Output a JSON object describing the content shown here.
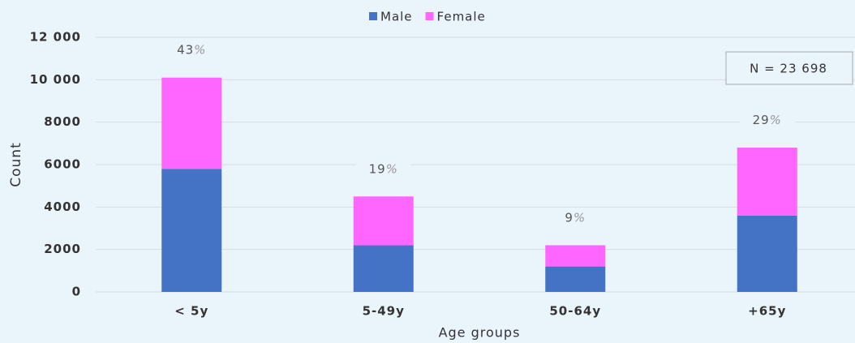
{
  "chart_data": {
    "type": "stacked_bar",
    "x_label": "Age groups",
    "y_label": "Count",
    "categories": [
      "< 5y",
      "5-49y",
      "50-64y",
      "+65y"
    ],
    "series": [
      {
        "name": "Male",
        "color": "#4472c4",
        "values": [
          5800,
          2200,
          1200,
          3600
        ]
      },
      {
        "name": "Female",
        "color": "#ff66ff",
        "values": [
          4300,
          2300,
          1000,
          3200
        ]
      }
    ],
    "annotations": [
      "43%",
      "19%",
      "9%",
      "29%"
    ],
    "note": "N = 23 698",
    "ylim": [
      0,
      12000
    ],
    "yticks": [
      0,
      2000,
      4000,
      6000,
      8000,
      {
        "value": 10000,
        "label": "10 000"
      },
      {
        "value": 12000,
        "label": "12 000"
      }
    ],
    "grid": true,
    "legend": "top"
  }
}
